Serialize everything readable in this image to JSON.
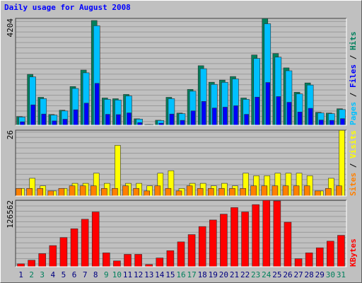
{
  "title": "Daily usage for August 2008",
  "legend_separator": " / ",
  "chart_data": [
    {
      "type": "bar",
      "ylim": [
        0,
        4204
      ],
      "yticks": [
        4204
      ],
      "series": [
        {
          "name": "Hits",
          "color": "#00805c",
          "values": [
            340,
            2003,
            1100,
            423,
            592,
            1523,
            2172,
            4120,
            1072,
            1044,
            1213,
            254,
            28,
            197,
            1100,
            480,
            1410,
            2342,
            1693,
            1777,
            1918,
            1072,
            2765,
            4204,
            2821,
            2257,
            1298,
            1665,
            508,
            480,
            649
          ]
        },
        {
          "name": "Files",
          "color": "#0000ff",
          "values": [
            136,
            801,
            440,
            169,
            237,
            609,
            869,
            1648,
            429,
            418,
            485,
            102,
            11,
            79,
            440,
            192,
            564,
            937,
            677,
            711,
            767,
            429,
            1106,
            1682,
            1128,
            903,
            519,
            666,
            203,
            192,
            260
          ]
        },
        {
          "name": "Pages",
          "color": "#00c0ff",
          "values": [
            323,
            1903,
            1045,
            402,
            562,
            1447,
            2063,
            3914,
            1018,
            992,
            1152,
            241,
            27,
            187,
            1045,
            456,
            1340,
            2225,
            1608,
            1688,
            1822,
            1018,
            2627,
            3994,
            2680,
            2144,
            1233,
            1582,
            483,
            456,
            617
          ]
        }
      ]
    },
    {
      "type": "bar",
      "ylim": [
        0,
        26
      ],
      "yticks": [
        26
      ],
      "series": [
        {
          "name": "Visits",
          "color": "#ffff00",
          "values": [
            3,
            7,
            4,
            2,
            3,
            5,
            5,
            9,
            5,
            20,
            5,
            5,
            4,
            9,
            10,
            3,
            5,
            5,
            4,
            5,
            4,
            9,
            8,
            8,
            9,
            9,
            9,
            8,
            2,
            7,
            26
          ]
        },
        {
          "name": "Sites",
          "color": "#ff8000",
          "values": [
            3,
            3,
            3,
            2,
            3,
            4,
            4,
            4,
            3,
            3,
            4,
            3,
            2,
            4,
            3,
            2,
            4,
            3,
            3,
            3,
            3,
            3,
            4,
            4,
            4,
            4,
            4,
            4,
            2,
            3,
            4
          ]
        }
      ]
    },
    {
      "type": "bar",
      "ylim": [
        0,
        126562
      ],
      "yticks": [
        126562
      ],
      "categories": [
        "1",
        "2",
        "3",
        "4",
        "5",
        "6",
        "7",
        "8",
        "9",
        "10",
        "11",
        "12",
        "13",
        "14",
        "15",
        "16",
        "17",
        "18",
        "19",
        "20",
        "21",
        "22",
        "23",
        "24",
        "25",
        "26",
        "27",
        "28",
        "29",
        "30",
        "31"
      ],
      "label_colors": [
        "#000080",
        "#00805c",
        "#00805c",
        "#000080",
        "#000080",
        "#000080",
        "#000080",
        "#000080",
        "#00805c",
        "#00805c",
        "#000080",
        "#000080",
        "#000080",
        "#000080",
        "#000080",
        "#00805c",
        "#00805c",
        "#000080",
        "#000080",
        "#000080",
        "#000080",
        "#000080",
        "#00805c",
        "#00805c",
        "#000080",
        "#000080",
        "#000080",
        "#000080",
        "#000080",
        "#00805c",
        "#00805c"
      ],
      "series": [
        {
          "name": "KBytes",
          "color": "#ff0000",
          "values": [
            5600,
            12500,
            25000,
            40300,
            55600,
            72300,
            90400,
            104300,
            26400,
            11100,
            23600,
            23600,
            4200,
            16700,
            30600,
            47300,
            61200,
            76500,
            89000,
            100100,
            112600,
            104300,
            118200,
            126562,
            125200,
            84800,
            15300,
            26400,
            36100,
            48700,
            59800
          ]
        }
      ]
    }
  ]
}
